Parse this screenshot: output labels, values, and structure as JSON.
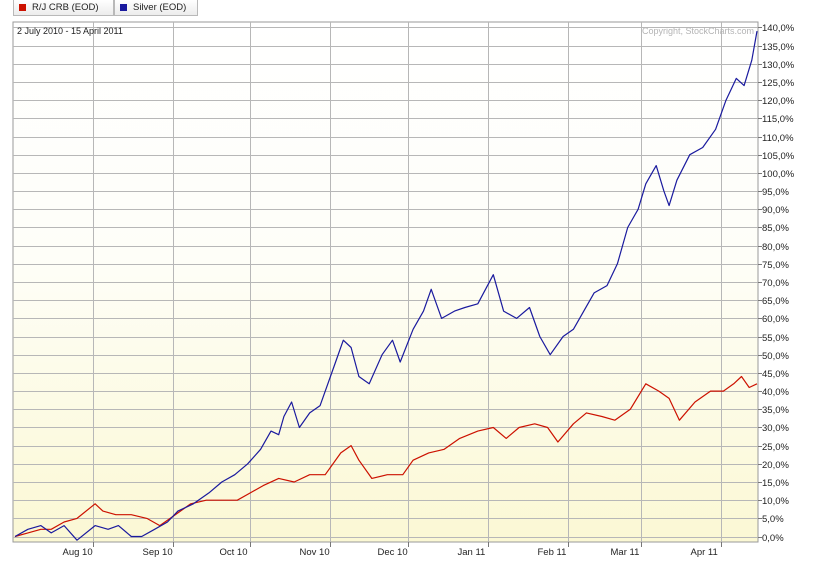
{
  "legend": [
    {
      "label": "R/J CRB (EOD)",
      "color": "#cc1100"
    },
    {
      "label": "Silver (EOD)",
      "color": "#1a1a9e"
    }
  ],
  "chart_data": {
    "type": "line",
    "date_range": "2 July 2010 - 15 April 2011",
    "copyright": "Copyright, StockCharts.com",
    "ylim": [
      -1.5,
      141.5
    ],
    "y_ticks": [
      0,
      5,
      10,
      15,
      20,
      25,
      30,
      35,
      40,
      45,
      50,
      55,
      60,
      65,
      70,
      75,
      80,
      85,
      90,
      95,
      100,
      105,
      110,
      115,
      120,
      125,
      130,
      135,
      140
    ],
    "y_tick_labels": [
      "0,0%",
      "5,0%",
      "10,0%",
      "15,0%",
      "20,0%",
      "25,0%",
      "30,0%",
      "35,0%",
      "40,0%",
      "45,0%",
      "50,0%",
      "55,0%",
      "60,0%",
      "65,0%",
      "70,0%",
      "75,0%",
      "80,0%",
      "85,0%",
      "90,0%",
      "95,0%",
      "100,0%",
      "105,0%",
      "110,0%",
      "115,0%",
      "120,0%",
      "125,0%",
      "130,0%",
      "135,0%",
      "140,0%"
    ],
    "x_ticks": [
      {
        "label": "Aug 10",
        "date": "2010-08-01"
      },
      {
        "label": "Sep 10",
        "date": "2010-09-01"
      },
      {
        "label": "Oct 10",
        "date": "2010-10-01"
      },
      {
        "label": "Nov 10",
        "date": "2010-11-01"
      },
      {
        "label": "Dec 10",
        "date": "2010-12-01"
      },
      {
        "label": "Jan 11",
        "date": "2011-01-01"
      },
      {
        "label": "Feb 11",
        "date": "2011-02-01"
      },
      {
        "label": "Mar 11",
        "date": "2011-03-01"
      },
      {
        "label": "Apr 11",
        "date": "2011-04-01"
      }
    ],
    "grid": true,
    "series": [
      {
        "name": "R/J CRB (EOD)",
        "color": "#cc1100",
        "points": [
          [
            "2010-07-02",
            0
          ],
          [
            "2010-07-07",
            1
          ],
          [
            "2010-07-12",
            2
          ],
          [
            "2010-07-16",
            2
          ],
          [
            "2010-07-21",
            4
          ],
          [
            "2010-07-26",
            5
          ],
          [
            "2010-08-02",
            9
          ],
          [
            "2010-08-05",
            7
          ],
          [
            "2010-08-10",
            6
          ],
          [
            "2010-08-16",
            6
          ],
          [
            "2010-08-22",
            5
          ],
          [
            "2010-08-27",
            3
          ],
          [
            "2010-09-02",
            6
          ],
          [
            "2010-09-08",
            9
          ],
          [
            "2010-09-14",
            10
          ],
          [
            "2010-09-20",
            10
          ],
          [
            "2010-09-26",
            10
          ],
          [
            "2010-10-01",
            12
          ],
          [
            "2010-10-06",
            14
          ],
          [
            "2010-10-12",
            16
          ],
          [
            "2010-10-18",
            15
          ],
          [
            "2010-10-24",
            17
          ],
          [
            "2010-10-30",
            17
          ],
          [
            "2010-11-05",
            23
          ],
          [
            "2010-11-09",
            25
          ],
          [
            "2010-11-12",
            21
          ],
          [
            "2010-11-17",
            16
          ],
          [
            "2010-11-23",
            17
          ],
          [
            "2010-11-29",
            17
          ],
          [
            "2010-12-03",
            21
          ],
          [
            "2010-12-09",
            23
          ],
          [
            "2010-12-15",
            24
          ],
          [
            "2010-12-21",
            27
          ],
          [
            "2010-12-28",
            29
          ],
          [
            "2011-01-03",
            30
          ],
          [
            "2011-01-08",
            27
          ],
          [
            "2011-01-13",
            30
          ],
          [
            "2011-01-19",
            31
          ],
          [
            "2011-01-24",
            30
          ],
          [
            "2011-01-28",
            26
          ],
          [
            "2011-02-03",
            31
          ],
          [
            "2011-02-08",
            34
          ],
          [
            "2011-02-14",
            33
          ],
          [
            "2011-02-19",
            32
          ],
          [
            "2011-02-25",
            35
          ],
          [
            "2011-03-03",
            42
          ],
          [
            "2011-03-08",
            40
          ],
          [
            "2011-03-12",
            38
          ],
          [
            "2011-03-16",
            32
          ],
          [
            "2011-03-22",
            37
          ],
          [
            "2011-03-28",
            40
          ],
          [
            "2011-04-02",
            40
          ],
          [
            "2011-04-06",
            42
          ],
          [
            "2011-04-09",
            44
          ],
          [
            "2011-04-12",
            41
          ],
          [
            "2011-04-15",
            42
          ]
        ]
      },
      {
        "name": "Silver (EOD)",
        "color": "#1a1a9e",
        "points": [
          [
            "2010-07-02",
            0
          ],
          [
            "2010-07-07",
            2
          ],
          [
            "2010-07-12",
            3
          ],
          [
            "2010-07-16",
            1
          ],
          [
            "2010-07-21",
            3
          ],
          [
            "2010-07-26",
            -1
          ],
          [
            "2010-08-02",
            3
          ],
          [
            "2010-08-07",
            2
          ],
          [
            "2010-08-11",
            3
          ],
          [
            "2010-08-16",
            0
          ],
          [
            "2010-08-20",
            0
          ],
          [
            "2010-08-25",
            2
          ],
          [
            "2010-08-30",
            4
          ],
          [
            "2010-09-03",
            7
          ],
          [
            "2010-09-09",
            9
          ],
          [
            "2010-09-15",
            12
          ],
          [
            "2010-09-20",
            15
          ],
          [
            "2010-09-25",
            17
          ],
          [
            "2010-09-30",
            20
          ],
          [
            "2010-10-05",
            24
          ],
          [
            "2010-10-09",
            29
          ],
          [
            "2010-10-12",
            28
          ],
          [
            "2010-10-14",
            33
          ],
          [
            "2010-10-17",
            37
          ],
          [
            "2010-10-20",
            30
          ],
          [
            "2010-10-24",
            34
          ],
          [
            "2010-10-28",
            36
          ],
          [
            "2010-11-03",
            48
          ],
          [
            "2010-11-06",
            54
          ],
          [
            "2010-11-09",
            52
          ],
          [
            "2010-11-12",
            44
          ],
          [
            "2010-11-16",
            42
          ],
          [
            "2010-11-21",
            50
          ],
          [
            "2010-11-25",
            54
          ],
          [
            "2010-11-28",
            48
          ],
          [
            "2010-12-03",
            57
          ],
          [
            "2010-12-07",
            62
          ],
          [
            "2010-12-10",
            68
          ],
          [
            "2010-12-14",
            60
          ],
          [
            "2010-12-19",
            62
          ],
          [
            "2010-12-23",
            63
          ],
          [
            "2010-12-28",
            64
          ],
          [
            "2011-01-03",
            72
          ],
          [
            "2011-01-07",
            62
          ],
          [
            "2011-01-12",
            60
          ],
          [
            "2011-01-17",
            63
          ],
          [
            "2011-01-21",
            55
          ],
          [
            "2011-01-25",
            50
          ],
          [
            "2011-01-30",
            55
          ],
          [
            "2011-02-03",
            57
          ],
          [
            "2011-02-07",
            62
          ],
          [
            "2011-02-11",
            67
          ],
          [
            "2011-02-16",
            69
          ],
          [
            "2011-02-20",
            75
          ],
          [
            "2011-02-24",
            85
          ],
          [
            "2011-02-28",
            90
          ],
          [
            "2011-03-03",
            97
          ],
          [
            "2011-03-07",
            102
          ],
          [
            "2011-03-10",
            95
          ],
          [
            "2011-03-12",
            91
          ],
          [
            "2011-03-15",
            98
          ],
          [
            "2011-03-20",
            105
          ],
          [
            "2011-03-25",
            107
          ],
          [
            "2011-03-30",
            112
          ],
          [
            "2011-04-03",
            120
          ],
          [
            "2011-04-07",
            126
          ],
          [
            "2011-04-10",
            124
          ],
          [
            "2011-04-13",
            131
          ],
          [
            "2011-04-15",
            139
          ]
        ]
      }
    ]
  }
}
